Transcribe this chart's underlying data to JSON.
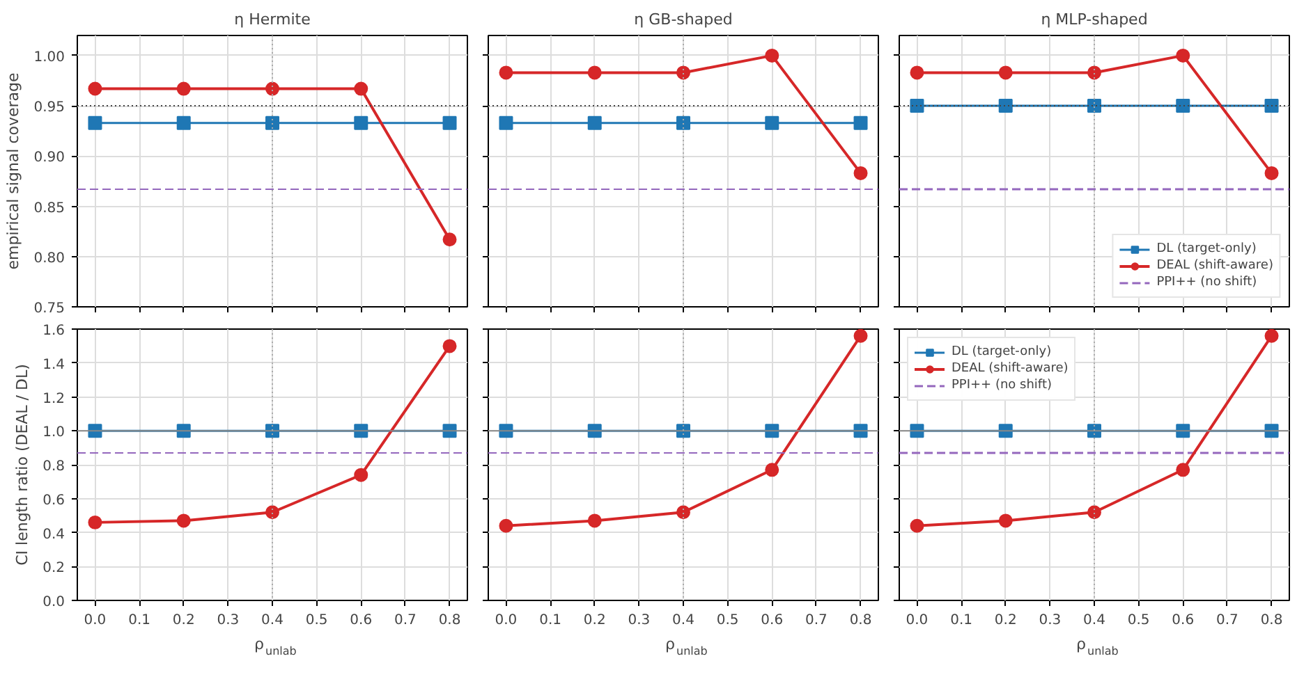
{
  "chart_data": [
    {
      "type": "line",
      "title": "η Hermite",
      "ylabel": "empirical signal coverage",
      "x": [
        0.0,
        0.2,
        0.4,
        0.6,
        0.8
      ],
      "series": [
        {
          "color": "#1f77b4",
          "marker": "square",
          "values": [
            0.933,
            0.933,
            0.933,
            0.933,
            0.933
          ]
        },
        {
          "color": "#d62728",
          "marker": "circle",
          "values": [
            0.967,
            0.967,
            0.967,
            0.967,
            0.817
          ]
        }
      ],
      "ref_lines": [
        {
          "axis": "y",
          "value": 0.867,
          "color": "#9467bd",
          "line_style": "dashed"
        },
        {
          "axis": "y",
          "value": 0.95,
          "color": "#444444",
          "line_style": "dotted"
        },
        {
          "axis": "x",
          "value": 0.4,
          "color": "#aaaaaa",
          "line_style": "dotted"
        }
      ],
      "xlim": [
        -0.04,
        0.84
      ],
      "ylim": [
        0.75,
        1.02
      ],
      "xticks": [
        {
          "value": 0.0,
          "label": null
        },
        {
          "value": 0.1,
          "label": null
        },
        {
          "value": 0.2,
          "label": null
        },
        {
          "value": 0.3,
          "label": null
        },
        {
          "value": 0.4,
          "label": null
        },
        {
          "value": 0.5,
          "label": null
        },
        {
          "value": 0.6,
          "label": null
        },
        {
          "value": 0.7,
          "label": null
        },
        {
          "value": 0.8,
          "label": null
        }
      ],
      "yticks": [
        {
          "value": 0.75,
          "label": "0.75"
        },
        {
          "value": 0.8,
          "label": "0.80"
        },
        {
          "value": 0.85,
          "label": "0.85"
        },
        {
          "value": 0.9,
          "label": "0.90"
        },
        {
          "value": 0.95,
          "label": "0.95"
        },
        {
          "value": 1.0,
          "label": "1.00"
        }
      ],
      "grid": true,
      "tick_labels": "y"
    },
    {
      "type": "line",
      "title": "η GB-shaped",
      "x": [
        0.0,
        0.2,
        0.4,
        0.6,
        0.8
      ],
      "series": [
        {
          "color": "#1f77b4",
          "marker": "square",
          "values": [
            0.933,
            0.933,
            0.933,
            0.933,
            0.933
          ]
        },
        {
          "color": "#d62728",
          "marker": "circle",
          "values": [
            0.983,
            0.983,
            0.983,
            1.0,
            0.883
          ]
        }
      ],
      "ref_lines": [
        {
          "axis": "y",
          "value": 0.867,
          "color": "#9467bd",
          "line_style": "dashed"
        },
        {
          "axis": "y",
          "value": 0.95,
          "color": "#444444",
          "line_style": "dotted"
        },
        {
          "axis": "x",
          "value": 0.4,
          "color": "#aaaaaa",
          "line_style": "dotted"
        }
      ],
      "xlim": [
        -0.04,
        0.84
      ],
      "ylim": [
        0.75,
        1.02
      ],
      "xticks": [
        {
          "value": 0.0,
          "label": null
        },
        {
          "value": 0.1,
          "label": null
        },
        {
          "value": 0.2,
          "label": null
        },
        {
          "value": 0.3,
          "label": null
        },
        {
          "value": 0.4,
          "label": null
        },
        {
          "value": 0.5,
          "label": null
        },
        {
          "value": 0.6,
          "label": null
        },
        {
          "value": 0.7,
          "label": null
        },
        {
          "value": 0.8,
          "label": null
        }
      ],
      "yticks": [
        {
          "value": 0.75,
          "label": null
        },
        {
          "value": 0.8,
          "label": null
        },
        {
          "value": 0.85,
          "label": null
        },
        {
          "value": 0.9,
          "label": null
        },
        {
          "value": 0.95,
          "label": null
        },
        {
          "value": 1.0,
          "label": null
        }
      ],
      "grid": true,
      "tick_labels": false
    },
    {
      "type": "line",
      "title": "η MLP-shaped",
      "x": [
        0.0,
        0.2,
        0.4,
        0.6,
        0.8
      ],
      "series": [
        {
          "name": "DL (target-only)",
          "color": "#1f77b4",
          "marker": "square",
          "values": [
            0.95,
            0.95,
            0.95,
            0.95,
            0.95
          ]
        },
        {
          "name": "DEAL (shift-aware)",
          "color": "#d62728",
          "marker": "circle",
          "values": [
            0.983,
            0.983,
            0.983,
            1.0,
            0.883
          ]
        }
      ],
      "ref_lines": [
        {
          "axis": "y",
          "value": 0.867,
          "label": "PPI++ (no shift)",
          "color": "#9467bd",
          "line_style": "dashed"
        },
        {
          "axis": "y",
          "value": 0.95,
          "color": "#444444",
          "line_style": "dotted"
        },
        {
          "axis": "x",
          "value": 0.4,
          "color": "#aaaaaa",
          "line_style": "dotted"
        }
      ],
      "xlim": [
        -0.04,
        0.84
      ],
      "ylim": [
        0.75,
        1.02
      ],
      "xticks": [
        {
          "value": 0.0,
          "label": null
        },
        {
          "value": 0.1,
          "label": null
        },
        {
          "value": 0.2,
          "label": null
        },
        {
          "value": 0.3,
          "label": null
        },
        {
          "value": 0.4,
          "label": null
        },
        {
          "value": 0.5,
          "label": null
        },
        {
          "value": 0.6,
          "label": null
        },
        {
          "value": 0.7,
          "label": null
        },
        {
          "value": 0.8,
          "label": null
        }
      ],
      "yticks": [
        {
          "value": 0.75,
          "label": null
        },
        {
          "value": 0.8,
          "label": null
        },
        {
          "value": 0.85,
          "label": null
        },
        {
          "value": 0.9,
          "label": null
        },
        {
          "value": 0.95,
          "label": null
        },
        {
          "value": 1.0,
          "label": null
        }
      ],
      "grid": true,
      "tick_labels": false,
      "legend": "bottom right"
    },
    {
      "type": "line",
      "ylabel": "CI length ratio (DEAL / DL)",
      "xlabel": "ρ$_{unlab}$",
      "x": [
        0.0,
        0.2,
        0.4,
        0.6,
        0.8
      ],
      "series": [
        {
          "color": "#1f77b4",
          "marker": "square",
          "values": [
            1.0,
            1.0,
            1.0,
            1.0,
            1.0
          ]
        },
        {
          "color": "#d62728",
          "marker": "circle",
          "values": [
            0.46,
            0.47,
            0.52,
            0.74,
            1.5
          ]
        }
      ],
      "ref_lines": [
        {
          "axis": "y",
          "value": 0.87,
          "color": "#9467bd",
          "line_style": "dashed"
        },
        {
          "axis": "y",
          "value": 1.0,
          "color": "#888888",
          "line_style": "solid"
        },
        {
          "axis": "x",
          "value": 0.4,
          "color": "#aaaaaa",
          "line_style": "dotted"
        }
      ],
      "xlim": [
        -0.04,
        0.84
      ],
      "ylim": [
        0.0,
        1.6
      ],
      "xticks": [
        {
          "value": 0.0,
          "label": "0.0"
        },
        0.1,
        0.2,
        0.3,
        0.4,
        0.5,
        0.6,
        0.7,
        0.8
      ],
      "yticks": [
        {
          "value": 0.0,
          "label": "0.0"
        },
        0.2,
        0.4,
        0.6,
        0.8,
        {
          "value": 1.0,
          "label": "1.0"
        },
        1.2,
        1.4,
        1.6
      ],
      "grid": true
    },
    {
      "type": "line",
      "xlabel": "ρ$_{unlab}$",
      "x": [
        0.0,
        0.2,
        0.4,
        0.6,
        0.8
      ],
      "series": [
        {
          "color": "#1f77b4",
          "marker": "square",
          "values": [
            1.0,
            1.0,
            1.0,
            1.0,
            1.0
          ]
        },
        {
          "color": "#d62728",
          "marker": "circle",
          "values": [
            0.44,
            0.47,
            0.52,
            0.77,
            1.56
          ]
        }
      ],
      "ref_lines": [
        {
          "axis": "y",
          "value": 0.87,
          "color": "#9467bd",
          "line_style": "dashed"
        },
        {
          "axis": "y",
          "value": 1.0,
          "color": "#888888",
          "line_style": "solid"
        },
        {
          "axis": "x",
          "value": 0.4,
          "color": "#aaaaaa",
          "line_style": "dotted"
        }
      ],
      "xlim": [
        -0.04,
        0.84
      ],
      "ylim": [
        0.0,
        1.6
      ],
      "xticks": [
        {
          "value": 0.0,
          "label": "0.0"
        },
        0.1,
        0.2,
        0.3,
        0.4,
        0.5,
        0.6,
        0.7,
        0.8
      ],
      "yticks": [
        {
          "value": 0.0,
          "label": null
        },
        {
          "value": 0.2,
          "label": null
        },
        {
          "value": 0.4,
          "label": null
        },
        {
          "value": 0.6,
          "label": null
        },
        {
          "value": 0.8,
          "label": null
        },
        {
          "value": 1.0,
          "label": null
        },
        {
          "value": 1.2,
          "label": null
        },
        {
          "value": 1.4,
          "label": null
        },
        {
          "value": 1.6,
          "label": null
        }
      ],
      "grid": true,
      "tick_labels": "x"
    },
    {
      "type": "line",
      "xlabel": "ρ$_{unlab}$",
      "x": [
        0.0,
        0.2,
        0.4,
        0.6,
        0.8
      ],
      "series": [
        {
          "name": "DL (target-only)",
          "color": "#1f77b4",
          "marker": "square",
          "values": [
            1.0,
            1.0,
            1.0,
            1.0,
            1.0
          ]
        },
        {
          "name": "DEAL (shift-aware)",
          "color": "#d62728",
          "marker": "circle",
          "values": [
            0.44,
            0.47,
            0.52,
            0.77,
            1.56
          ]
        }
      ],
      "ref_lines": [
        {
          "axis": "y",
          "value": 0.87,
          "label": "PPI++ (no shift)",
          "color": "#9467bd",
          "line_style": "dashed"
        },
        {
          "axis": "y",
          "value": 1.0,
          "color": "#888888",
          "line_style": "solid"
        },
        {
          "axis": "x",
          "value": 0.4,
          "color": "#aaaaaa",
          "line_style": "dotted"
        }
      ],
      "xlim": [
        -0.04,
        0.84
      ],
      "ylim": [
        0.0,
        1.6
      ],
      "xticks": [
        {
          "value": 0.0,
          "label": "0.0"
        },
        0.1,
        0.2,
        0.3,
        0.4,
        0.5,
        0.6,
        0.7,
        0.8
      ],
      "yticks": [
        {
          "value": 0.0,
          "label": null
        },
        {
          "value": 0.2,
          "label": null
        },
        {
          "value": 0.4,
          "label": null
        },
        {
          "value": 0.6,
          "label": null
        },
        {
          "value": 0.8,
          "label": null
        },
        {
          "value": 1.0,
          "label": null
        },
        {
          "value": 1.2,
          "label": null
        },
        {
          "value": 1.4,
          "label": null
        },
        {
          "value": 1.6,
          "label": null
        }
      ],
      "grid": true,
      "tick_labels": "x",
      "legend": "top left"
    }
  ]
}
